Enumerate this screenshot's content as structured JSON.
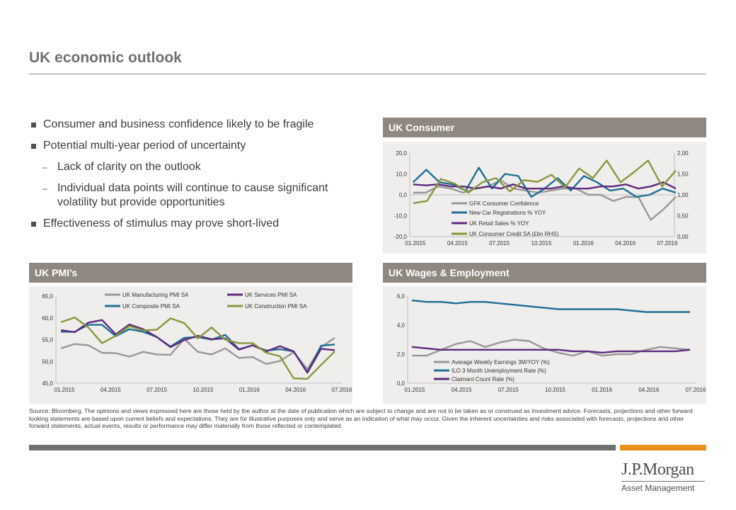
{
  "page": {
    "title": "UK economic outlook",
    "bullets": [
      {
        "level": 1,
        "text": "Consumer and business confidence likely to be fragile"
      },
      {
        "level": 1,
        "text": "Potential multi-year period of uncertainty"
      },
      {
        "level": 2,
        "text": "Lack of clarity on the outlook"
      },
      {
        "level": 2,
        "text": "Individual data points will continue to cause significant volatility but provide opportunities"
      },
      {
        "level": 1,
        "text": "Effectiveness of stimulus may prove short-lived"
      }
    ],
    "source": "Source: Bloomberg. The opinions and views expressed here are those held by the author at the date of publication which are subject to change and are not to be taken as or construed as investment advice. Forecasts, projections and other forward looking statements are based upon current beliefs and expectations. They are for illustrative purposes only and serve as an indication of what may occur. Given the inherent uncertainties and risks associated with forecasts, projections and other forward statements, actual events, results or performance may differ materially from those reflected or contemplated.",
    "logo": {
      "name": "J.P.Morgan",
      "sub": "Asset Management"
    }
  },
  "colors": {
    "grey": "#9a9896",
    "teal": "#1f6f96",
    "purple": "#5e2a7e",
    "olive": "#8a973e",
    "header": "#8f8880",
    "accent": "#e9911a"
  },
  "chart_data": [
    {
      "id": "consumer",
      "heading": "UK Consumer",
      "type": "line",
      "x_ticks": [
        "01.2015",
        "04.2015",
        "07.2015",
        "10.2015",
        "01.2016",
        "04.2016",
        "07.2016"
      ],
      "y_left_ticks": [
        "20,0",
        "10,0",
        "0,0",
        "-10,0",
        "-20,0"
      ],
      "y_right_ticks": [
        "2,00",
        "1,50",
        "1,00",
        "0,50",
        "0,00"
      ],
      "ylim_left": [
        -20,
        20
      ],
      "ylim_right": [
        0,
        2
      ],
      "legend": "inside-bottom-center",
      "series": [
        {
          "name": "GFK Consumer Confidence",
          "color": "#9a9896",
          "axis": "left",
          "values": [
            1,
            1,
            4,
            3,
            1,
            3,
            4,
            7,
            3,
            2,
            1,
            2,
            3,
            3,
            0,
            0,
            -3,
            -1,
            -1,
            -12,
            -7,
            -1
          ]
        },
        {
          "name": "New Car Registrations % YOY",
          "color": "#1f6f96",
          "axis": "left",
          "values": [
            6,
            12,
            6,
            5,
            2,
            13,
            3,
            10,
            9,
            -1,
            3,
            8,
            2,
            9,
            6,
            2,
            3,
            -1,
            0,
            3,
            1
          ]
        },
        {
          "name": "UK Retail Sales % YOY",
          "color": "#5e2a7e",
          "axis": "left",
          "values": [
            5,
            4.5,
            5,
            4,
            4,
            3,
            4,
            3,
            5,
            3,
            3,
            3,
            4,
            3,
            3,
            4,
            4,
            5,
            3,
            4,
            6,
            3
          ]
        },
        {
          "name": "UK Consumer Credit SA (£bn RHS)",
          "color": "#8a973e",
          "axis": "right",
          "values": [
            0.8,
            0.85,
            1.38,
            1.27,
            1.05,
            1.3,
            1.4,
            1.08,
            1.35,
            1.31,
            1.48,
            1.18,
            1.63,
            1.4,
            1.82,
            1.3,
            1.55,
            1.82,
            1.2,
            1.58
          ]
        }
      ]
    },
    {
      "id": "pmi",
      "heading": "UK PMI’s",
      "type": "line",
      "x_ticks": [
        "01.2015",
        "04.2015",
        "07.2015",
        "10.2015",
        "01.2016",
        "04.2016",
        "07.2016"
      ],
      "y_left_ticks": [
        "65,0",
        "60,0",
        "55,0",
        "50,0",
        "45,0"
      ],
      "ylim": [
        45,
        65
      ],
      "legend": "top",
      "series": [
        {
          "name": "UK Manufacturing PMI SA",
          "color": "#9a9896",
          "values": [
            53,
            54,
            53.7,
            52,
            51.9,
            51.1,
            52.2,
            51.6,
            51.5,
            55.2,
            52.2,
            51.6,
            53,
            50.8,
            51,
            49.4,
            50.1,
            52.1,
            48.2,
            53.3,
            55.4
          ]
        },
        {
          "name": "UK Composite PMI SA",
          "color": "#1f6f96",
          "values": [
            56.8,
            56.8,
            58.4,
            58.4,
            55.8,
            57.4,
            56.8,
            55.6,
            53.4,
            55.4,
            55.6,
            55,
            56.1,
            52.8,
            53.7,
            52.5,
            52.8,
            52.3,
            47.5,
            53.6,
            53.9
          ]
        },
        {
          "name": "UK Services PMI SA",
          "color": "#5e2a7e",
          "values": [
            57.2,
            56.7,
            58.9,
            59.5,
            56.2,
            58.5,
            57.4,
            55.6,
            53.3,
            54.9,
            55.9,
            55.1,
            55.3,
            52.7,
            53.7,
            52.3,
            53.5,
            52.3,
            47.4,
            52.9,
            52.6
          ]
        },
        {
          "name": "UK Construction PMI SA",
          "color": "#8a973e",
          "values": [
            59,
            60.1,
            57.8,
            54.2,
            55.9,
            58.1,
            57.1,
            57.3,
            59.9,
            58.8,
            55.3,
            57.8,
            55,
            54.2,
            54.2,
            52,
            51.2,
            46.1,
            46,
            49.2,
            52.3
          ]
        }
      ]
    },
    {
      "id": "wages",
      "heading": "UK Wages & Employment",
      "type": "line",
      "x_ticks": [
        "01.2015",
        "04.2015",
        "07.2015",
        "10.2015",
        "01.2016",
        "04.2016",
        "07.2016"
      ],
      "y_left_ticks": [
        "6,0",
        "4,0",
        "2,0",
        "0,0"
      ],
      "ylim": [
        0,
        6
      ],
      "legend": "inside-bottom-left",
      "series": [
        {
          "name": "Average Weekly Earnings 3M/YOY (%)",
          "color": "#9a9896",
          "values": [
            1.9,
            1.9,
            2.3,
            2.7,
            2.9,
            2.5,
            2.8,
            3.0,
            2.9,
            2.4,
            2.1,
            1.9,
            2.2,
            1.9,
            2.0,
            2.0,
            2.3,
            2.5,
            2.4,
            2.3
          ]
        },
        {
          "name": "ILO 3 Month Unemployment Rate (%)",
          "color": "#1f6f96",
          "values": [
            5.7,
            5.6,
            5.6,
            5.5,
            5.6,
            5.6,
            5.5,
            5.4,
            5.3,
            5.2,
            5.1,
            5.1,
            5.1,
            5.1,
            5.1,
            5.0,
            4.9,
            4.9,
            4.9,
            4.9
          ]
        },
        {
          "name": "Claimant Count Rate (%)",
          "color": "#5e2a7e",
          "values": [
            2.5,
            2.4,
            2.3,
            2.3,
            2.3,
            2.3,
            2.3,
            2.3,
            2.3,
            2.3,
            2.3,
            2.2,
            2.2,
            2.1,
            2.2,
            2.2,
            2.2,
            2.2,
            2.2,
            2.3
          ]
        }
      ]
    }
  ]
}
